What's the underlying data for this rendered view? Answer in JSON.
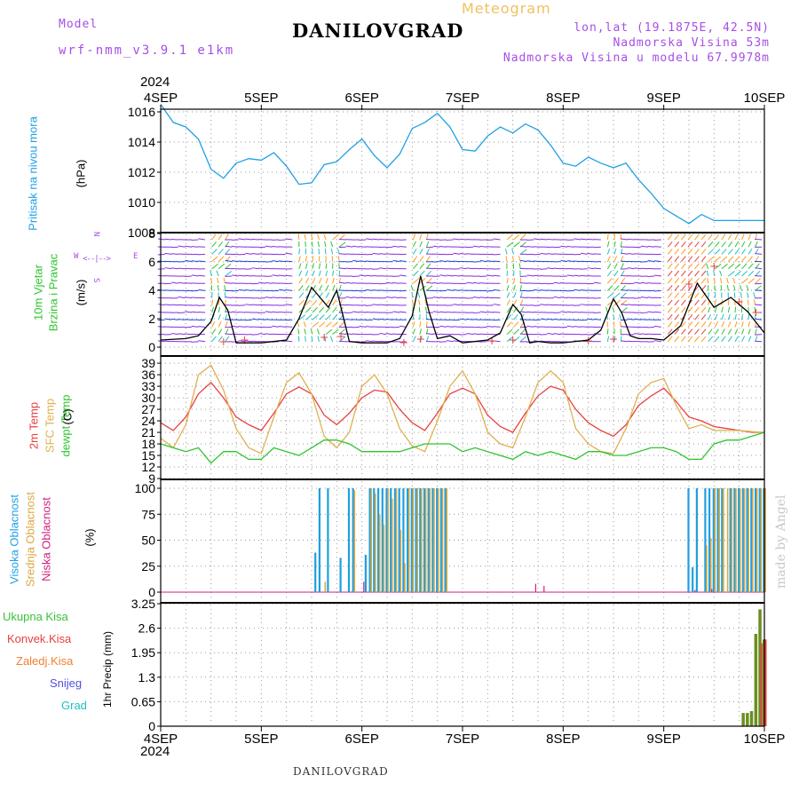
{
  "header": {
    "model_label": "Model",
    "model_name": "wrf-nmm_v3.9.1 e1km",
    "title": "DANILOVGRAD",
    "meteogram_label": "Meteogram",
    "coords": "lon,lat (19.1875E, 42.5N)",
    "altitude": "Nadmorska Visina 53m",
    "model_altitude": "Nadmorska Visina u modelu 67.9978m"
  },
  "footer": {
    "station": "DANILOVGRAD",
    "made_by": "made by Angel",
    "year": "2024"
  },
  "x_axis": {
    "days": [
      "4SEP",
      "5SEP",
      "6SEP",
      "7SEP",
      "8SEP",
      "9SEP",
      "10SEP"
    ]
  },
  "panels": {
    "pressure": {
      "labels": [
        "Pritisak na nivou mora"
      ],
      "unit": "(hPa)"
    },
    "wind": {
      "labels": [
        "10m Vjetar",
        "Brzina i Pravac"
      ],
      "unit": "(m/s)",
      "compass": [
        "W",
        "S",
        "N",
        "E"
      ]
    },
    "temp": {
      "labels": [
        "2m Temp",
        "SFC Temp",
        "dewpt Temp"
      ],
      "unit": "(C)"
    },
    "cloud": {
      "labels": [
        "Visoka Oblacnost",
        "Srednja Oblacnost",
        "Niska Oblacnost"
      ],
      "unit": "(%)"
    },
    "precip": {
      "unit": "1hr Precip (mm)",
      "legend": [
        "Ukupna Kisa",
        "Konvek.Kisa",
        "Zaledj.Kisa",
        "Snijeg",
        "Grad"
      ]
    }
  },
  "colors": {
    "pressure": "#1fa0e6",
    "wind_speed": "#000000",
    "t2m": "#e84040",
    "sfc": "#e0b050",
    "dewpt": "#2ec52e",
    "high_cloud": "#1f9fe0",
    "mid_cloud": "#d9a840",
    "low_cloud": "#d02080",
    "total_rain": "#3bc03b",
    "conv_rain": "#e84040",
    "freezing_rain": "#f08030",
    "snow": "#5050e0",
    "hail": "#20c0c0"
  },
  "chart_data": [
    {
      "type": "line",
      "name": "pressure",
      "ylabel": "(hPa)",
      "ylim": [
        1008,
        1017
      ],
      "yticks": [
        1008,
        1010,
        1012,
        1014,
        1016
      ],
      "grid": true,
      "x_hours": [
        0,
        3,
        6,
        9,
        12,
        15,
        18,
        21,
        24,
        27,
        30,
        33,
        36,
        39,
        42,
        45,
        48,
        51,
        54,
        57,
        60,
        63,
        66,
        69,
        72,
        75,
        78,
        81,
        84,
        87,
        90,
        93,
        96,
        99,
        102,
        105,
        108,
        111,
        114,
        117,
        120,
        123,
        126,
        129,
        132,
        135,
        138,
        141,
        144
      ],
      "series": [
        {
          "name": "Pritisak na nivou mora",
          "values": [
            1016.5,
            1015.3,
            1015,
            1014.2,
            1012.2,
            1011.6,
            1012.6,
            1012.9,
            1012.8,
            1013.3,
            1012.4,
            1011.2,
            1011.3,
            1012.5,
            1012.7,
            1013.5,
            1014.2,
            1013.1,
            1012.3,
            1013.2,
            1014.9,
            1015.3,
            1015.9,
            1015.0,
            1013.5,
            1013.4,
            1014.4,
            1015.0,
            1014.6,
            1015.2,
            1014.8,
            1013.8,
            1012.6,
            1012.4,
            1013.0,
            1012.6,
            1012.3,
            1012.6,
            1011.5,
            1010.6,
            1009.6,
            1009.1,
            1008.6,
            1009.2,
            1008.8,
            1008.8,
            1008.8,
            1008.8,
            1008.8
          ]
        }
      ]
    },
    {
      "type": "line",
      "name": "wind",
      "ylabel": "(m/s)",
      "ylim": [
        -0.5,
        8
      ],
      "yticks": [
        0,
        2,
        4,
        6,
        8
      ],
      "grid": true,
      "x_hours": [
        0,
        6,
        9,
        12,
        14,
        16,
        18,
        21,
        24,
        30,
        33,
        36,
        38,
        40,
        42,
        45,
        48,
        54,
        57,
        60,
        62,
        64,
        66,
        69,
        72,
        78,
        81,
        84,
        86,
        88,
        90,
        93,
        96,
        102,
        105,
        108,
        110,
        112,
        114,
        117,
        120,
        124,
        126,
        128,
        132,
        136,
        140,
        144
      ],
      "series": [
        {
          "name": "speed",
          "values": [
            0.5,
            0.6,
            0.8,
            1.8,
            3.5,
            2.6,
            0.3,
            0.3,
            0.3,
            0.5,
            2.0,
            4.2,
            3.5,
            2.8,
            4.0,
            0.4,
            0.3,
            0.3,
            0.6,
            2.2,
            5.0,
            2.5,
            0.6,
            0.8,
            0.3,
            0.5,
            1.0,
            3.0,
            2.3,
            0.3,
            0.4,
            0.3,
            0.3,
            0.5,
            1.2,
            3.4,
            2.4,
            0.8,
            0.6,
            0.6,
            0.5,
            1.5,
            3.0,
            4.5,
            2.8,
            3.5,
            2.5,
            1.0
          ]
        }
      ]
    },
    {
      "type": "line",
      "name": "temperature",
      "ylabel": "(C)",
      "ylim": [
        9,
        41
      ],
      "yticks": [
        9,
        12,
        15,
        18,
        21,
        24,
        27,
        30,
        33,
        36,
        39
      ],
      "grid": true,
      "x_hours": [
        0,
        3,
        6,
        9,
        12,
        15,
        18,
        21,
        24,
        27,
        30,
        33,
        36,
        39,
        42,
        45,
        48,
        51,
        54,
        57,
        60,
        63,
        66,
        69,
        72,
        75,
        78,
        81,
        84,
        87,
        90,
        93,
        96,
        99,
        102,
        105,
        108,
        111,
        114,
        117,
        120,
        123,
        126,
        129,
        132,
        135,
        138,
        141,
        144
      ],
      "series": [
        {
          "name": "2m Temp",
          "values": [
            23.5,
            21.5,
            25,
            31,
            34,
            30,
            25,
            23,
            21.5,
            26,
            31,
            32.8,
            31,
            25.5,
            23,
            26,
            30,
            32,
            31.5,
            27,
            23.5,
            21.5,
            26,
            31,
            32.5,
            31,
            25.5,
            22.5,
            21,
            26,
            30.5,
            33,
            32,
            27,
            23.5,
            21.5,
            20,
            23,
            28,
            30.5,
            32.5,
            29,
            25,
            24,
            22.5,
            22,
            21.5,
            21,
            21
          ]
        },
        {
          "name": "SFC Temp",
          "values": [
            19.5,
            17,
            23,
            36,
            38.5,
            32,
            22,
            17,
            15.5,
            25,
            34,
            36.5,
            31,
            20,
            17,
            21,
            33,
            36,
            31,
            22,
            17.5,
            16,
            24,
            33,
            37,
            31,
            21,
            18,
            17,
            25,
            34,
            37,
            34,
            22,
            18,
            16,
            15.5,
            22,
            31,
            34,
            35,
            28,
            22,
            23,
            21.5,
            21.5,
            21.5,
            21.2,
            21
          ]
        },
        {
          "name": "dewpt Temp",
          "values": [
            18,
            17,
            16,
            17,
            13,
            16,
            16,
            14,
            14,
            17,
            16,
            15,
            17,
            19,
            19,
            18,
            16,
            16,
            16,
            16,
            17,
            18,
            18,
            18,
            16,
            17,
            16,
            15,
            14,
            16,
            15,
            16,
            15,
            14,
            16,
            16,
            15,
            15,
            16,
            17,
            17,
            16,
            14,
            14,
            18,
            19,
            19,
            20,
            21
          ]
        }
      ]
    },
    {
      "type": "bar",
      "name": "cloud_cover",
      "ylabel": "(%)",
      "ylim": [
        0,
        100
      ],
      "yticks": [
        0,
        25,
        50,
        75,
        100
      ],
      "grid": true,
      "series": [
        {
          "name": "Visoka Oblacnost",
          "bars": [
            [
              37,
              38
            ],
            [
              38,
              100
            ],
            [
              40,
              100
            ],
            [
              43,
              33
            ],
            [
              45,
              100
            ],
            [
              46,
              100
            ],
            [
              49,
              36
            ],
            [
              50,
              100
            ],
            [
              51,
              100
            ],
            [
              52,
              100
            ],
            [
              53,
              100
            ],
            [
              54,
              100
            ],
            [
              55,
              100
            ],
            [
              56,
              100
            ],
            [
              57,
              100
            ],
            [
              58,
              100
            ],
            [
              59,
              100
            ],
            [
              60,
              100
            ],
            [
              61,
              100
            ],
            [
              62,
              100
            ],
            [
              63,
              100
            ],
            [
              64,
              100
            ],
            [
              65,
              100
            ],
            [
              66,
              100
            ],
            [
              67,
              100
            ],
            [
              68,
              100
            ],
            [
              126,
              100
            ],
            [
              127,
              24
            ],
            [
              128,
              100
            ],
            [
              130,
              100
            ],
            [
              131,
              100
            ],
            [
              132,
              100
            ],
            [
              133,
              100
            ],
            [
              134,
              100
            ],
            [
              136,
              100
            ],
            [
              137,
              100
            ],
            [
              138,
              100
            ],
            [
              139,
              100
            ],
            [
              140,
              100
            ],
            [
              141,
              100
            ],
            [
              142,
              100
            ],
            [
              143,
              100
            ],
            [
              144,
              100
            ]
          ]
        },
        {
          "name": "Srednja Oblacnost",
          "bars": [
            [
              39,
              10
            ],
            [
              46,
              98
            ],
            [
              50,
              100
            ],
            [
              51,
              95
            ],
            [
              52,
              75
            ],
            [
              53,
              65
            ],
            [
              54,
              100
            ],
            [
              55,
              90
            ],
            [
              56,
              100
            ],
            [
              57,
              60
            ],
            [
              58,
              28
            ],
            [
              59,
              100
            ],
            [
              60,
              100
            ],
            [
              61,
              100
            ],
            [
              62,
              100
            ],
            [
              63,
              100
            ],
            [
              64,
              100
            ],
            [
              65,
              100
            ],
            [
              66,
              100
            ],
            [
              67,
              100
            ],
            [
              68,
              100
            ],
            [
              130,
              45
            ],
            [
              131,
              52
            ],
            [
              132,
              100
            ],
            [
              133,
              100
            ],
            [
              134,
              100
            ],
            [
              135,
              100
            ],
            [
              136,
              100
            ],
            [
              137,
              100
            ],
            [
              138,
              100
            ],
            [
              139,
              100
            ],
            [
              140,
              100
            ],
            [
              141,
              100
            ],
            [
              142,
              100
            ],
            [
              143,
              100
            ],
            [
              144,
              100
            ]
          ]
        },
        {
          "name": "Niska Oblacnost",
          "bars": [
            [
              48,
              10
            ],
            [
              89,
              8
            ],
            [
              91,
              6
            ],
            [
              127,
              2
            ],
            [
              131,
              3
            ]
          ]
        }
      ]
    },
    {
      "type": "bar",
      "name": "precipitation",
      "ylabel": "1hr Precip (mm)",
      "ylim": [
        0,
        3.25
      ],
      "yticks": [
        0,
        0.65,
        1.3,
        1.95,
        2.6,
        3.25
      ],
      "grid": true,
      "series": [
        {
          "name": "Ukupna Kisa",
          "bars": [
            [
              139,
              0.35
            ],
            [
              140,
              0.35
            ],
            [
              141,
              0.4
            ],
            [
              142,
              2.45
            ],
            [
              143,
              3.1
            ],
            [
              144,
              2.3
            ]
          ]
        },
        {
          "name": "Konvek.Kisa",
          "bars": [
            [
              143,
              2.2
            ],
            [
              144,
              2.3
            ]
          ]
        }
      ]
    }
  ]
}
